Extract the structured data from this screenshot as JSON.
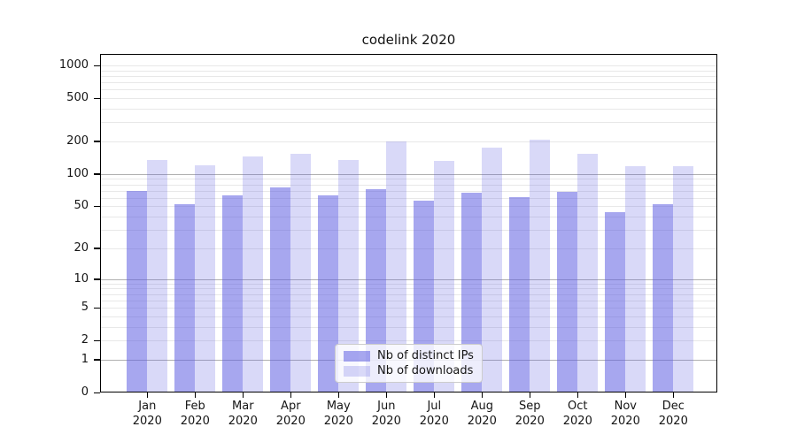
{
  "chart_data": {
    "type": "bar",
    "title": "codelink 2020",
    "months": [
      "Jan",
      "Feb",
      "Mar",
      "Apr",
      "May",
      "Jun",
      "Jul",
      "Aug",
      "Sep",
      "Oct",
      "Nov",
      "Dec"
    ],
    "year": "2020",
    "series": [
      {
        "name": "Nb of distinct IPs",
        "fill": "rgba(92,92,226,0.54)",
        "color": "#a6a6ef",
        "values": [
          70,
          52,
          63,
          75,
          63,
          72,
          56,
          67,
          61,
          68,
          44,
          52
        ]
      },
      {
        "name": "Nb of downloads",
        "fill": "rgba(92,92,226,0.235)",
        "color": "#d9d9f6",
        "values": [
          135,
          120,
          145,
          154,
          135,
          200,
          132,
          175,
          207,
          155,
          118,
          119
        ]
      }
    ],
    "y_scale": "symlog",
    "y_ticks": [
      0,
      1,
      2,
      5,
      10,
      20,
      50,
      100,
      200,
      500,
      1000
    ],
    "ylim": [
      0,
      1000
    ],
    "grid": true,
    "legend_position": "lower-center",
    "xlabel": "",
    "ylabel": ""
  },
  "colors": {
    "bar_ips": "#a6a6ef",
    "bar_downloads": "#d9d9f6",
    "grid_major": "#b0b0b0",
    "grid_minor": "#e8e8e8",
    "axis": "#000000",
    "text": "#151515",
    "background": "#ffffff"
  }
}
